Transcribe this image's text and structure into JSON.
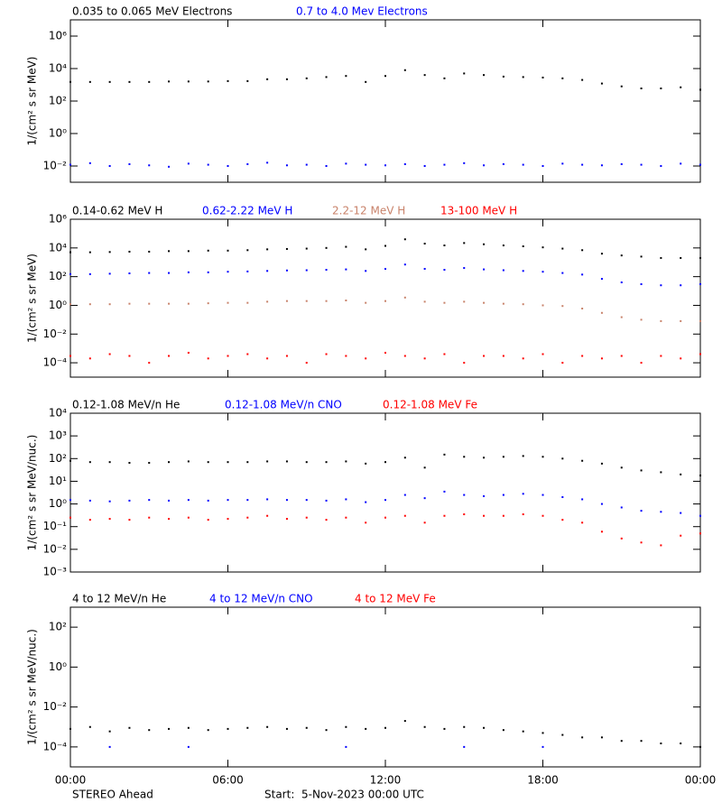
{
  "chart_data": [
    {
      "type": "scatter",
      "log_y": true,
      "y_label": "1/(cm² s sr MeV)",
      "x": [
        0,
        0.75,
        1.5,
        2.25,
        3,
        3.75,
        4.5,
        5.25,
        6,
        6.75,
        7.5,
        8.25,
        9,
        9.75,
        10.5,
        11.25,
        12,
        12.75,
        13.5,
        14.25,
        15,
        15.75,
        16.5,
        17.25,
        18,
        18.75,
        19.5,
        20.25,
        21,
        21.75,
        22.5,
        23.25,
        24
      ],
      "xlim": [
        0,
        24
      ],
      "xticks": [
        0,
        6,
        12,
        18,
        24
      ],
      "ylim": [
        0.001,
        10000000
      ],
      "yticks": [
        {
          "value": 1000000,
          "label": "10⁶"
        },
        {
          "value": 10000,
          "label": "10⁴"
        },
        {
          "value": 100,
          "label": "10²"
        },
        {
          "value": 1,
          "label": "10⁰"
        },
        {
          "value": 0.01,
          "label": "10⁻²"
        }
      ],
      "series": [
        {
          "name": "0.035 to 0.065 MeV Electrons",
          "color": "#000000",
          "values": [
            1500,
            1500,
            1500,
            1500,
            1500,
            1600,
            1600,
            1600,
            1700,
            1700,
            2200,
            2200,
            2500,
            3000,
            3500,
            1500,
            3500,
            8000,
            4000,
            2500,
            5000,
            4000,
            3200,
            3000,
            2800,
            2500,
            2000,
            1200,
            800,
            600,
            600,
            700,
            500
          ]
        },
        {
          "name": "0.7 to 4.0 Mev Electrons",
          "color": "#0000ff",
          "values": [
            0.012,
            0.015,
            0.01,
            0.013,
            0.011,
            0.009,
            0.014,
            0.012,
            0.01,
            0.013,
            0.016,
            0.011,
            0.012,
            0.01,
            0.014,
            0.012,
            0.011,
            0.013,
            0.01,
            0.012,
            0.015,
            0.011,
            0.013,
            0.012,
            0.01,
            0.014,
            0.012,
            0.011,
            0.013,
            0.012,
            0.01,
            0.014,
            0.012
          ]
        }
      ]
    },
    {
      "type": "scatter",
      "log_y": true,
      "y_label": "1/(cm² s sr MeV)",
      "x": [
        0,
        0.75,
        1.5,
        2.25,
        3,
        3.75,
        4.5,
        5.25,
        6,
        6.75,
        7.5,
        8.25,
        9,
        9.75,
        10.5,
        11.25,
        12,
        12.75,
        13.5,
        14.25,
        15,
        15.75,
        16.5,
        17.25,
        18,
        18.75,
        19.5,
        20.25,
        21,
        21.75,
        22.5,
        23.25,
        24
      ],
      "xlim": [
        0,
        24
      ],
      "xticks": [
        0,
        6,
        12,
        18,
        24
      ],
      "ylim": [
        1e-05,
        1000000
      ],
      "yticks": [
        {
          "value": 1000000,
          "label": "10⁶"
        },
        {
          "value": 10000,
          "label": "10⁴"
        },
        {
          "value": 100,
          "label": "10²"
        },
        {
          "value": 1,
          "label": "10⁰"
        },
        {
          "value": 0.01,
          "label": "10⁻²"
        },
        {
          "value": 0.0001,
          "label": "10⁻⁴"
        }
      ],
      "series": [
        {
          "name": "0.14-0.62 MeV H",
          "color": "#000000",
          "values": [
            5000,
            5000,
            5200,
            5500,
            5500,
            6000,
            6000,
            6500,
            6500,
            7000,
            8000,
            8500,
            9000,
            10000,
            12000,
            8000,
            14000,
            40000,
            20000,
            15000,
            22000,
            18000,
            15000,
            13000,
            11000,
            9000,
            7000,
            4000,
            3000,
            2500,
            2000,
            2000,
            2000
          ]
        },
        {
          "name": "0.62-2.22 MeV H",
          "color": "#0000ff",
          "values": [
            150,
            150,
            160,
            170,
            180,
            180,
            200,
            200,
            220,
            230,
            250,
            270,
            280,
            300,
            320,
            250,
            350,
            700,
            350,
            300,
            400,
            320,
            280,
            250,
            220,
            180,
            140,
            70,
            40,
            30,
            25,
            25,
            30
          ]
        },
        {
          "name": "2.2-12 MeV H",
          "color": "#c8826a",
          "values": [
            1.2,
            1.2,
            1.2,
            1.3,
            1.3,
            1.3,
            1.3,
            1.4,
            1.5,
            1.5,
            1.8,
            2,
            2,
            2,
            2.2,
            1.5,
            2,
            3.5,
            1.8,
            1.5,
            1.8,
            1.5,
            1.3,
            1.2,
            1,
            0.9,
            0.6,
            0.3,
            0.15,
            0.1,
            0.08,
            0.08,
            0.08
          ]
        },
        {
          "name": "13-100 MeV H",
          "color": "#ff0000",
          "values": [
            0.0003,
            0.0002,
            0.0004,
            0.0003,
            0.0001,
            0.0003,
            0.0005,
            0.0002,
            0.0003,
            0.0004,
            0.0002,
            0.0003,
            0.0001,
            0.0004,
            0.0003,
            0.0002,
            0.0005,
            0.0003,
            0.0002,
            0.0004,
            0.0001,
            0.0003,
            0.0003,
            0.0002,
            0.0004,
            0.0001,
            0.0003,
            0.0002,
            0.0003,
            0.0001,
            0.0003,
            0.0002,
            0.0004
          ]
        }
      ]
    },
    {
      "type": "scatter",
      "log_y": true,
      "y_label": "1/(cm² s sr MeV/nuc.)",
      "x": [
        0,
        0.75,
        1.5,
        2.25,
        3,
        3.75,
        4.5,
        5.25,
        6,
        6.75,
        7.5,
        8.25,
        9,
        9.75,
        10.5,
        11.25,
        12,
        12.75,
        13.5,
        14.25,
        15,
        15.75,
        16.5,
        17.25,
        18,
        18.75,
        19.5,
        20.25,
        21,
        21.75,
        22.5,
        23.25,
        24
      ],
      "xlim": [
        0,
        24
      ],
      "xticks": [
        0,
        6,
        12,
        18,
        24
      ],
      "ylim": [
        0.001,
        10000
      ],
      "yticks": [
        {
          "value": 10000,
          "label": "10⁴"
        },
        {
          "value": 1000,
          "label": "10³"
        },
        {
          "value": 100,
          "label": "10²"
        },
        {
          "value": 10,
          "label": "10¹"
        },
        {
          "value": 1,
          "label": "10⁰"
        },
        {
          "value": 0.1,
          "label": "10⁻¹"
        },
        {
          "value": 0.01,
          "label": "10⁻²"
        },
        {
          "value": 0.001,
          "label": "10⁻³"
        }
      ],
      "series": [
        {
          "name": "0.12-1.08 MeV/n He",
          "color": "#000000",
          "values": [
            80,
            70,
            70,
            65,
            65,
            70,
            75,
            70,
            70,
            70,
            75,
            75,
            70,
            70,
            75,
            60,
            70,
            110,
            40,
            150,
            120,
            110,
            120,
            130,
            120,
            100,
            80,
            60,
            40,
            30,
            25,
            20,
            18
          ]
        },
        {
          "name": "0.12-1.08 MeV/n CNO",
          "color": "#0000ff",
          "values": [
            1.5,
            1.4,
            1.3,
            1.4,
            1.5,
            1.4,
            1.5,
            1.4,
            1.5,
            1.5,
            1.6,
            1.5,
            1.5,
            1.4,
            1.6,
            1.2,
            1.5,
            2.5,
            1.8,
            3.5,
            2.5,
            2.2,
            2.5,
            2.8,
            2.5,
            2,
            1.6,
            1,
            0.7,
            0.5,
            0.45,
            0.4,
            0.3
          ]
        },
        {
          "name": "0.12-1.08 MeV Fe",
          "color": "#ff0000",
          "values": [
            0.25,
            0.2,
            0.22,
            0.2,
            0.25,
            0.22,
            0.25,
            0.2,
            0.22,
            0.25,
            0.3,
            0.22,
            0.25,
            0.2,
            0.25,
            0.15,
            0.25,
            0.3,
            0.15,
            0.3,
            0.35,
            0.3,
            0.3,
            0.35,
            0.3,
            0.2,
            0.15,
            0.06,
            0.03,
            0.02,
            0.015,
            0.04,
            0.05
          ]
        }
      ]
    },
    {
      "type": "scatter",
      "log_y": true,
      "y_label": "1/(cm² s sr MeV/nuc.)",
      "x": [
        0,
        0.75,
        1.5,
        2.25,
        3,
        3.75,
        4.5,
        5.25,
        6,
        6.75,
        7.5,
        8.25,
        9,
        9.75,
        10.5,
        11.25,
        12,
        12.75,
        13.5,
        14.25,
        15,
        15.75,
        16.5,
        17.25,
        18,
        18.75,
        19.5,
        20.25,
        21,
        21.75,
        22.5,
        23.25,
        24
      ],
      "xlim": [
        0,
        24
      ],
      "xticks": [
        {
          "value": 0,
          "label": "00:00"
        },
        {
          "value": 6,
          "label": "06:00"
        },
        {
          "value": 12,
          "label": "12:00"
        },
        {
          "value": 18,
          "label": "18:00"
        },
        {
          "value": 24,
          "label": "00:00"
        }
      ],
      "ylim": [
        1e-05,
        1000
      ],
      "yticks": [
        {
          "value": 100,
          "label": "10²"
        },
        {
          "value": 1,
          "label": "10⁰"
        },
        {
          "value": 0.01,
          "label": "10⁻²"
        },
        {
          "value": 0.0001,
          "label": "10⁻⁴"
        }
      ],
      "series": [
        {
          "name": "4 to 12 MeV/n He",
          "color": "#000000",
          "values": [
            0.0008,
            0.001,
            0.0006,
            0.0009,
            0.0007,
            0.0008,
            0.0009,
            0.0007,
            0.0008,
            0.0009,
            0.001,
            0.0008,
            0.0009,
            0.0007,
            0.001,
            0.0008,
            0.0009,
            0.002,
            0.001,
            0.0008,
            0.001,
            0.0009,
            0.0007,
            0.0006,
            0.0005,
            0.0004,
            0.0003,
            0.0003,
            0.0002,
            0.0002,
            0.00015,
            0.00015,
            0.0001
          ]
        },
        {
          "name": "4 to 12 MeV/n CNO",
          "color": "#0000ff",
          "values": [
            null,
            null,
            0.0001,
            null,
            null,
            null,
            0.0001,
            null,
            null,
            null,
            null,
            null,
            null,
            null,
            0.0001,
            null,
            null,
            null,
            null,
            null,
            0.0001,
            null,
            null,
            null,
            0.0001,
            null,
            null,
            null,
            null,
            null,
            null,
            null,
            null
          ]
        },
        {
          "name": "4 to 12 MeV Fe",
          "color": "#ff0000",
          "values": [
            null,
            null,
            null,
            null,
            null,
            null,
            null,
            null,
            null,
            null,
            null,
            null,
            null,
            null,
            null,
            null,
            null,
            null,
            null,
            null,
            null,
            null,
            null,
            null,
            null,
            null,
            null,
            null,
            null,
            null,
            null,
            null,
            null
          ]
        }
      ]
    }
  ],
  "footer": {
    "spacecraft": "STEREO Ahead",
    "start": "Start:  5-Nov-2023 00:00 UTC"
  }
}
